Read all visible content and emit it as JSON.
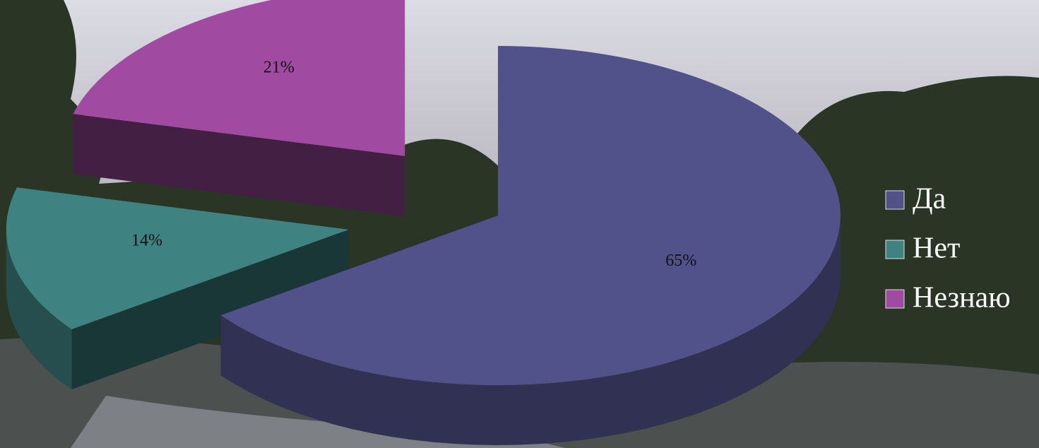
{
  "chart_data": {
    "type": "pie",
    "categories": [
      "Да",
      "Нет",
      "Незнаю"
    ],
    "values": [
      65,
      14,
      21
    ],
    "value_labels": [
      "65%",
      "14%",
      "21%"
    ],
    "colors": [
      "#52528a",
      "#3f8282",
      "#a04aa2"
    ],
    "legend": "right"
  }
}
